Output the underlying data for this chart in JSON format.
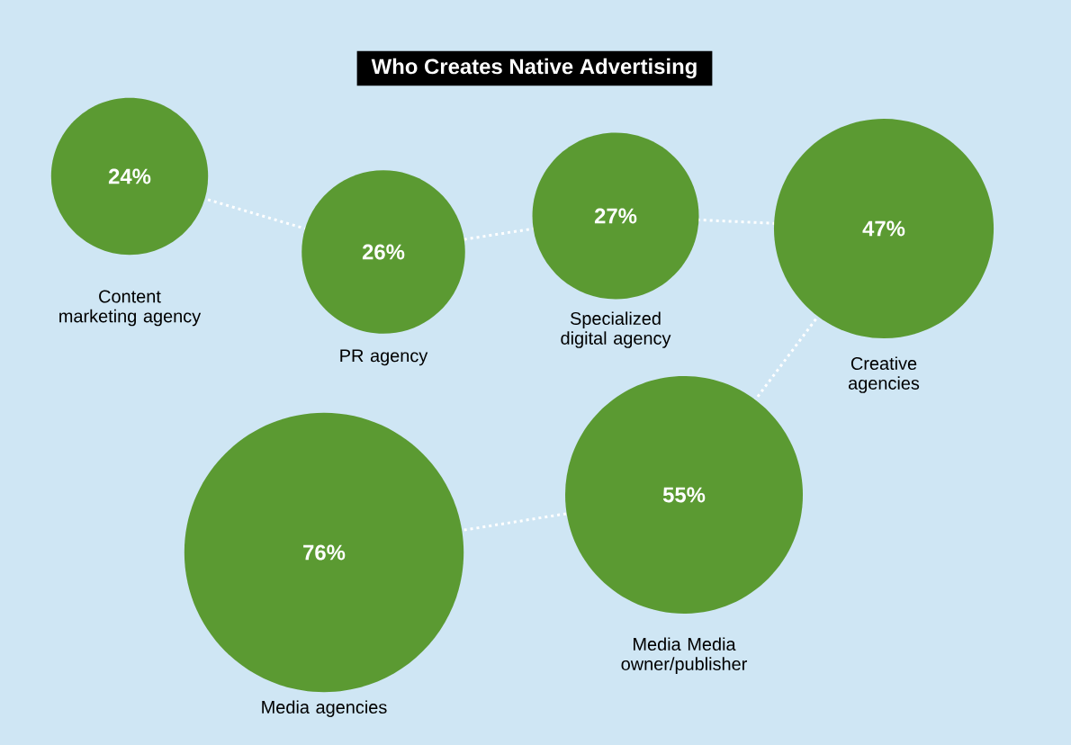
{
  "chart_data": {
    "type": "other",
    "title": "Who Creates Native Advertising",
    "categories": [
      "Content marketing agency",
      "PR agency",
      "Specialized digital agency",
      "Creative agencies",
      "Media Media owner/publisher",
      "Media agencies"
    ],
    "values": [
      24,
      26,
      27,
      47,
      55,
      76
    ],
    "value_labels": [
      "24%",
      "26%",
      "27%",
      "47%",
      "55%",
      "76%"
    ],
    "color": "#5b9a32"
  }
}
